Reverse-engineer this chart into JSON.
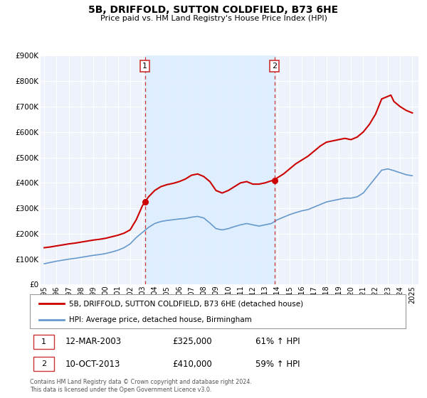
{
  "title": "5B, DRIFFOLD, SUTTON COLDFIELD, B73 6HE",
  "subtitle": "Price paid vs. HM Land Registry's House Price Index (HPI)",
  "ylim": [
    0,
    900000
  ],
  "yticks": [
    0,
    100000,
    200000,
    300000,
    400000,
    500000,
    600000,
    700000,
    800000,
    900000
  ],
  "ytick_labels": [
    "£0",
    "£100K",
    "£200K",
    "£300K",
    "£400K",
    "£500K",
    "£600K",
    "£700K",
    "£800K",
    "£900K"
  ],
  "xlim_start": 1994.7,
  "xlim_end": 2025.5,
  "xticks": [
    1995,
    1996,
    1997,
    1998,
    1999,
    2000,
    2001,
    2002,
    2003,
    2004,
    2005,
    2006,
    2007,
    2008,
    2009,
    2010,
    2011,
    2012,
    2013,
    2014,
    2015,
    2016,
    2017,
    2018,
    2019,
    2020,
    2021,
    2022,
    2023,
    2024,
    2025
  ],
  "sale1_x": 2003.2,
  "sale1_y": 325000,
  "sale2_x": 2013.77,
  "sale2_y": 410000,
  "sale1_date": "12-MAR-2003",
  "sale1_price": "£325,000",
  "sale1_hpi": "61% ↑ HPI",
  "sale2_date": "10-OCT-2013",
  "sale2_price": "£410,000",
  "sale2_hpi": "59% ↑ HPI",
  "red_line_color": "#cc0000",
  "blue_line_color": "#6699cc",
  "vline_color": "#cc3333",
  "span_color": "#ddeeff",
  "legend_label1": "5B, DRIFFOLD, SUTTON COLDFIELD, B73 6HE (detached house)",
  "legend_label2": "HPI: Average price, detached house, Birmingham",
  "footer_text": "Contains HM Land Registry data © Crown copyright and database right 2024.\nThis data is licensed under the Open Government Licence v3.0.",
  "red_x": [
    1995.0,
    1995.5,
    1996.0,
    1996.5,
    1997.0,
    1997.5,
    1998.0,
    1998.5,
    1999.0,
    1999.5,
    2000.0,
    2000.5,
    2001.0,
    2001.5,
    2002.0,
    2002.5,
    2003.0,
    2003.2,
    2003.5,
    2004.0,
    2004.5,
    2005.0,
    2005.5,
    2006.0,
    2006.5,
    2007.0,
    2007.5,
    2008.0,
    2008.5,
    2009.0,
    2009.5,
    2010.0,
    2010.5,
    2011.0,
    2011.5,
    2012.0,
    2012.5,
    2013.0,
    2013.5,
    2013.77,
    2014.0,
    2014.5,
    2015.0,
    2015.5,
    2016.0,
    2016.5,
    2017.0,
    2017.5,
    2018.0,
    2018.5,
    2019.0,
    2019.5,
    2020.0,
    2020.5,
    2021.0,
    2021.5,
    2022.0,
    2022.5,
    2023.0,
    2023.25,
    2023.5,
    2024.0,
    2024.5,
    2025.0
  ],
  "red_y": [
    145000,
    148000,
    152000,
    156000,
    160000,
    163000,
    167000,
    171000,
    175000,
    178000,
    182000,
    188000,
    194000,
    202000,
    215000,
    255000,
    310000,
    325000,
    345000,
    370000,
    385000,
    393000,
    398000,
    405000,
    415000,
    430000,
    435000,
    425000,
    405000,
    370000,
    360000,
    370000,
    385000,
    400000,
    405000,
    395000,
    395000,
    400000,
    408000,
    410000,
    420000,
    435000,
    455000,
    475000,
    490000,
    505000,
    525000,
    545000,
    560000,
    565000,
    570000,
    575000,
    570000,
    580000,
    600000,
    630000,
    670000,
    730000,
    740000,
    745000,
    720000,
    700000,
    685000,
    675000
  ],
  "blue_x": [
    1995.0,
    1995.5,
    1996.0,
    1996.5,
    1997.0,
    1997.5,
    1998.0,
    1998.5,
    1999.0,
    1999.5,
    2000.0,
    2000.5,
    2001.0,
    2001.5,
    2002.0,
    2002.5,
    2003.0,
    2003.5,
    2004.0,
    2004.5,
    2005.0,
    2005.5,
    2006.0,
    2006.5,
    2007.0,
    2007.5,
    2008.0,
    2008.5,
    2009.0,
    2009.5,
    2010.0,
    2010.5,
    2011.0,
    2011.5,
    2012.0,
    2012.5,
    2013.0,
    2013.5,
    2014.0,
    2014.5,
    2015.0,
    2015.5,
    2016.0,
    2016.5,
    2017.0,
    2017.5,
    2018.0,
    2018.5,
    2019.0,
    2019.5,
    2020.0,
    2020.5,
    2021.0,
    2021.5,
    2022.0,
    2022.5,
    2023.0,
    2023.5,
    2024.0,
    2024.5,
    2025.0
  ],
  "blue_y": [
    82000,
    87000,
    92000,
    96000,
    100000,
    103000,
    107000,
    111000,
    115000,
    118000,
    122000,
    128000,
    135000,
    145000,
    160000,
    185000,
    205000,
    225000,
    240000,
    248000,
    252000,
    255000,
    258000,
    260000,
    265000,
    268000,
    262000,
    242000,
    220000,
    215000,
    220000,
    228000,
    235000,
    240000,
    235000,
    230000,
    235000,
    240000,
    255000,
    265000,
    275000,
    283000,
    290000,
    295000,
    305000,
    315000,
    325000,
    330000,
    335000,
    340000,
    340000,
    345000,
    360000,
    390000,
    420000,
    450000,
    455000,
    448000,
    440000,
    432000,
    428000
  ]
}
